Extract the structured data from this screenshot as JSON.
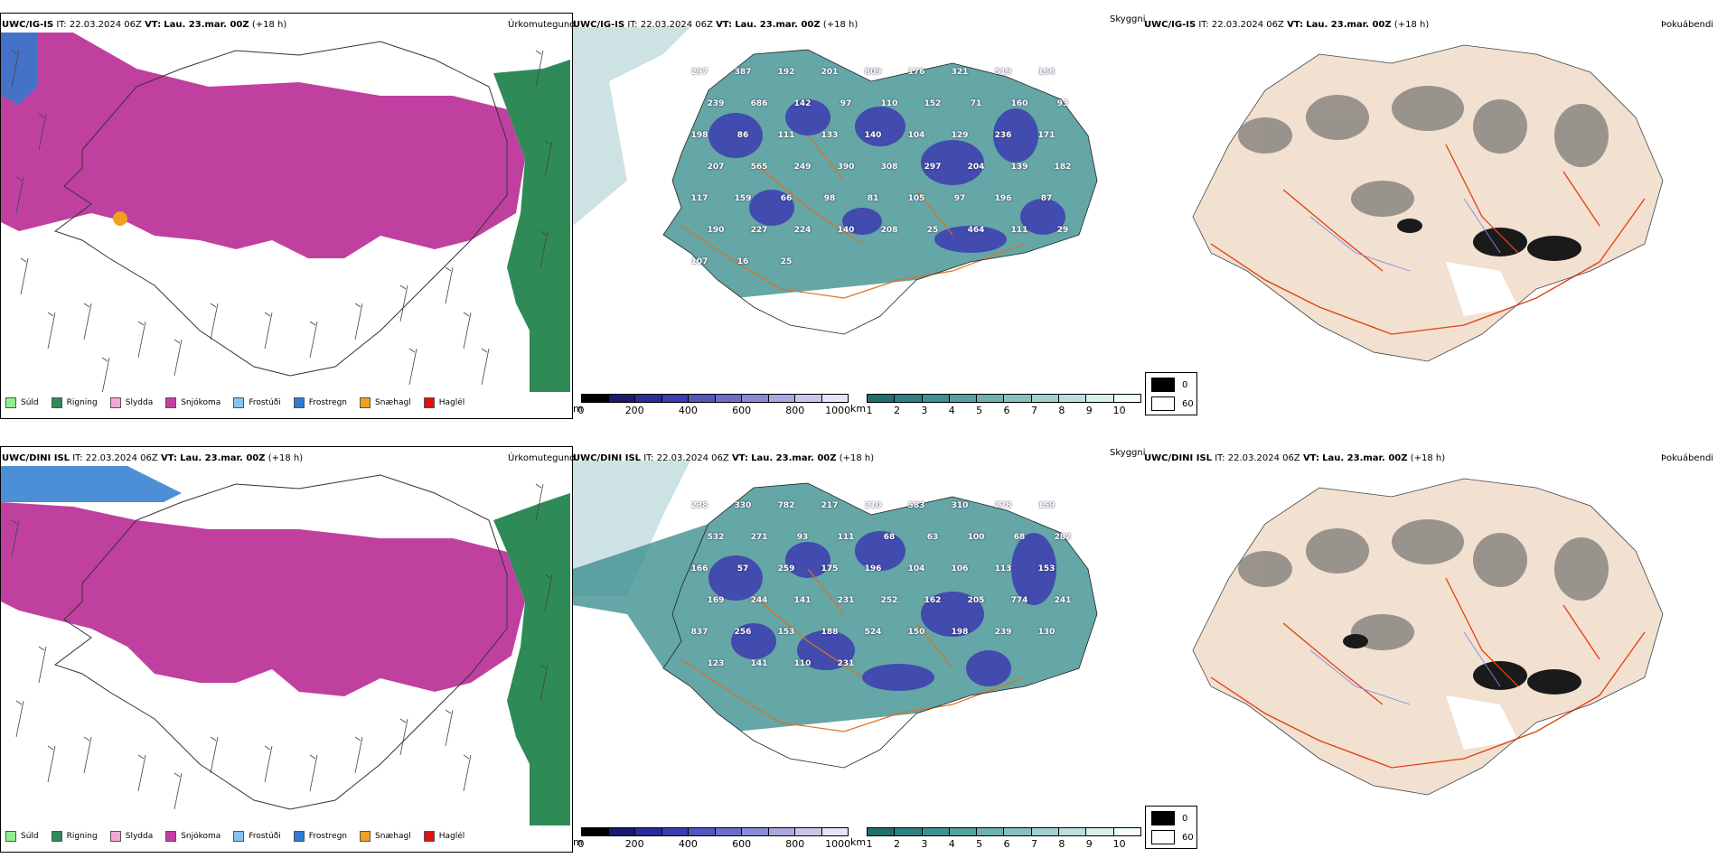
{
  "rows": [
    {
      "model": "UWC/IG-IS",
      "it_label": "IT:",
      "it_value": "22.03.2024 06Z",
      "vt_label": "VT:",
      "vt_value": "Lau. 23.mar. 00Z",
      "lead": "(+18 h)",
      "visibility_labels": [
        "297",
        "387",
        "192",
        "201",
        "809",
        "176",
        "321",
        "519",
        "166",
        "239",
        "686",
        "142",
        "97",
        "110",
        "152",
        "71",
        "160",
        "93",
        "198",
        "86",
        "111",
        "133",
        "140",
        "104",
        "129",
        "236",
        "171",
        "207",
        "565",
        "249",
        "390",
        "308",
        "297",
        "204",
        "139",
        "182",
        "117",
        "159",
        "66",
        "98",
        "81",
        "105",
        "97",
        "196",
        "87",
        "190",
        "227",
        "224",
        "140",
        "208",
        "25",
        "464",
        "111",
        "29",
        "107",
        "16",
        "25"
      ]
    },
    {
      "model": "UWC/DINI ISL",
      "it_label": "IT:",
      "it_value": "22.03.2024 06Z",
      "vt_label": "VT:",
      "vt_value": "Lau. 23.mar. 00Z",
      "lead": "(+18 h)",
      "visibility_labels": [
        "238",
        "330",
        "782",
        "217",
        "210",
        "583",
        "310",
        "278",
        "159",
        "532",
        "271",
        "93",
        "111",
        "68",
        "63",
        "100",
        "68",
        "282",
        "166",
        "57",
        "259",
        "175",
        "196",
        "104",
        "106",
        "113",
        "153",
        "169",
        "244",
        "141",
        "231",
        "252",
        "162",
        "205",
        "774",
        "241",
        "837",
        "256",
        "153",
        "188",
        "524",
        "150",
        "198",
        "239",
        "130",
        "123",
        "141",
        "110",
        "231"
      ]
    }
  ],
  "panels": {
    "precip_label": "Úrkomutegund",
    "visibility_label": "Skyggni",
    "fog_label": "Þokuábendi"
  },
  "precip_legend": [
    {
      "name": "Súld",
      "color": "#90ee90"
    },
    {
      "name": "Rigning",
      "color": "#2e8b57"
    },
    {
      "name": "Slydda",
      "color": "#f4a6d7"
    },
    {
      "name": "Snjókoma",
      "color": "#c040a0"
    },
    {
      "name": "Frostúði",
      "color": "#87c3f0"
    },
    {
      "name": "Frostregn",
      "color": "#2e7bd0"
    },
    {
      "name": "Snæhagl",
      "color": "#f0a020"
    },
    {
      "name": "Haglél",
      "color": "#e01010"
    }
  ],
  "height_bar": {
    "unit": "m",
    "ticks": [
      "0",
      "200",
      "400",
      "600",
      "800",
      "1000"
    ],
    "colors": [
      "#000000",
      "#1a1a6e",
      "#2b2b9a",
      "#3c3cb0",
      "#5555c0",
      "#6d6dc8",
      "#8a8ad4",
      "#a8a8e0",
      "#c6c6ec",
      "#e4e4f6"
    ]
  },
  "km_bar": {
    "unit": "km",
    "ticks": [
      "1",
      "2",
      "3",
      "4",
      "5",
      "6",
      "7",
      "8",
      "9",
      "10"
    ],
    "colors": [
      "#1f6f6f",
      "#2f8080",
      "#3f9090",
      "#56a0a0",
      "#6fb0b0",
      "#88c0bf",
      "#a2d0cf",
      "#bcdfdd",
      "#d6eeec",
      "#f0fbfa"
    ]
  },
  "fog_legend": [
    {
      "value": "0",
      "color": "#000000"
    },
    {
      "value": "60",
      "color": "#ffffff"
    }
  ]
}
